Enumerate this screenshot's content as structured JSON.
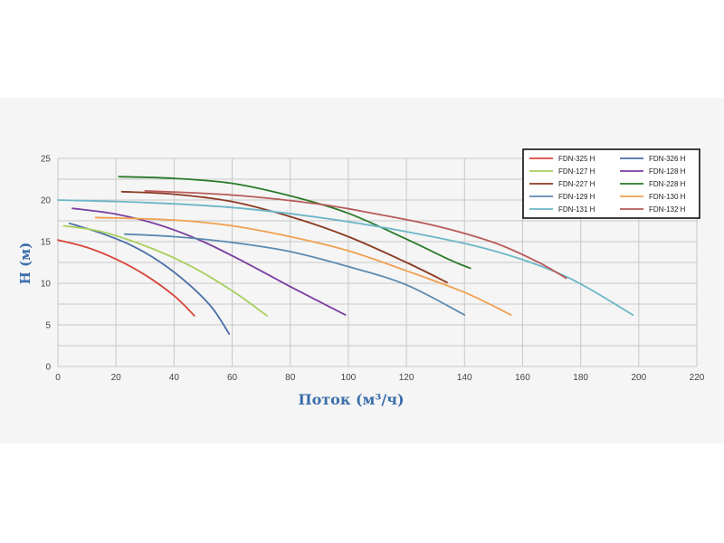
{
  "chart_data": {
    "type": "line",
    "xlabel": "Поток (м³/ч)",
    "ylabel": "H (м)",
    "xlim": [
      0,
      220
    ],
    "ylim": [
      0,
      25
    ],
    "x_ticks": [
      "0",
      "20",
      "40",
      "60",
      "80",
      "100",
      "120",
      "140",
      "160",
      "180",
      "200",
      "220"
    ],
    "y_ticks": [
      "0",
      "5",
      "10",
      "15",
      "20",
      "25"
    ],
    "grid": true,
    "legend_position": "top-right",
    "series": [
      {
        "name": "FDN-325 H",
        "color": "#d9463a",
        "points": [
          [
            0,
            15.2
          ],
          [
            10,
            14.3
          ],
          [
            20,
            12.9
          ],
          [
            30,
            11.0
          ],
          [
            40,
            8.5
          ],
          [
            47,
            6.1
          ]
        ]
      },
      {
        "name": "FDN-326 H",
        "color": "#4a6fa5",
        "points": [
          [
            4,
            17.2
          ],
          [
            15,
            16.0
          ],
          [
            25,
            14.6
          ],
          [
            35,
            12.6
          ],
          [
            45,
            9.9
          ],
          [
            53,
            7.1
          ],
          [
            59,
            3.9
          ]
        ]
      },
      {
        "name": "FDN-127 H",
        "color": "#a8cf5e",
        "points": [
          [
            2,
            16.9
          ],
          [
            15,
            16.2
          ],
          [
            30,
            14.5
          ],
          [
            45,
            12.2
          ],
          [
            60,
            9.1
          ],
          [
            72,
            6.1
          ]
        ]
      },
      {
        "name": "FDN-128 H",
        "color": "#7b3fa0",
        "points": [
          [
            5,
            19.0
          ],
          [
            20,
            18.3
          ],
          [
            35,
            17.0
          ],
          [
            50,
            15.0
          ],
          [
            65,
            12.4
          ],
          [
            80,
            9.6
          ],
          [
            90,
            7.8
          ],
          [
            99,
            6.2
          ]
        ]
      },
      {
        "name": "FDN-227 H",
        "color": "#8a3a22",
        "points": [
          [
            22,
            21.0
          ],
          [
            40,
            20.7
          ],
          [
            60,
            19.8
          ],
          [
            80,
            18.0
          ],
          [
            100,
            15.6
          ],
          [
            120,
            12.5
          ],
          [
            134,
            10.1
          ]
        ]
      },
      {
        "name": "FDN-228 H",
        "color": "#2a7a2a",
        "points": [
          [
            21,
            22.8
          ],
          [
            40,
            22.6
          ],
          [
            60,
            22.0
          ],
          [
            80,
            20.5
          ],
          [
            100,
            18.4
          ],
          [
            120,
            15.3
          ],
          [
            135,
            12.8
          ],
          [
            142,
            11.8
          ]
        ]
      },
      {
        "name": "FDN-129 H",
        "color": "#5b8ab0",
        "points": [
          [
            23,
            15.9
          ],
          [
            40,
            15.6
          ],
          [
            60,
            14.9
          ],
          [
            80,
            13.8
          ],
          [
            100,
            12.0
          ],
          [
            120,
            9.8
          ],
          [
            140,
            6.2
          ]
        ]
      },
      {
        "name": "FDN-130 H",
        "color": "#f0a050",
        "points": [
          [
            13,
            17.9
          ],
          [
            40,
            17.6
          ],
          [
            60,
            16.9
          ],
          [
            80,
            15.6
          ],
          [
            100,
            13.9
          ],
          [
            120,
            11.5
          ],
          [
            140,
            8.9
          ],
          [
            156,
            6.2
          ]
        ]
      },
      {
        "name": "FDN-131 H",
        "color": "#6cb6c8",
        "points": [
          [
            0,
            20.0
          ],
          [
            30,
            19.7
          ],
          [
            60,
            19.1
          ],
          [
            90,
            17.9
          ],
          [
            120,
            16.2
          ],
          [
            150,
            13.9
          ],
          [
            175,
            10.8
          ],
          [
            198,
            6.2
          ]
        ]
      },
      {
        "name": "FDN-132 H",
        "color": "#b85a5a",
        "points": [
          [
            30,
            21.1
          ],
          [
            60,
            20.6
          ],
          [
            90,
            19.5
          ],
          [
            110,
            18.3
          ],
          [
            130,
            16.9
          ],
          [
            150,
            14.9
          ],
          [
            165,
            12.6
          ],
          [
            175,
            10.6
          ]
        ]
      }
    ]
  }
}
